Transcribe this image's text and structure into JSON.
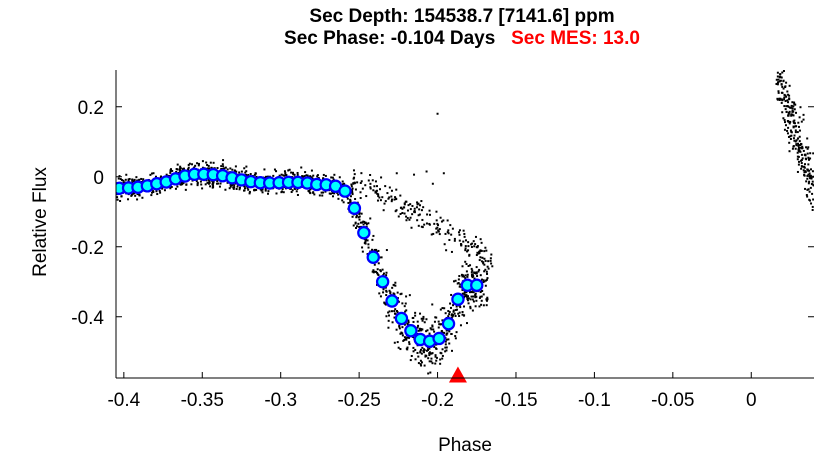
{
  "chart_data": {
    "type": "scatter",
    "title_line1": "Sec Depth: 154538.7 [7141.6] ppm",
    "title_line2_black": "Sec Phase: -0.104 Days",
    "title_line2_red": "Sec MES: 13.0",
    "xlabel": "Phase",
    "ylabel": "Relative Flux",
    "xlim": [
      -0.405,
      0.04
    ],
    "ylim": [
      -0.575,
      0.305
    ],
    "xticks": [
      "-0.4",
      "-0.35",
      "-0.3",
      "-0.25",
      "-0.2",
      "-0.15",
      "-0.1",
      "-0.05",
      "0"
    ],
    "xtick_values": [
      -0.4,
      -0.35,
      -0.3,
      -0.25,
      -0.2,
      -0.15,
      -0.1,
      -0.05,
      0
    ],
    "yticks": [
      "0.2",
      "0",
      "-0.2",
      "-0.4"
    ],
    "ytick_values": [
      0.2,
      0,
      -0.2,
      -0.4
    ],
    "grid": false,
    "colors": {
      "raw": "#000000",
      "binned_fill": "#00ffff",
      "binned_edge": "#0000ff",
      "marker": "#ff0000",
      "mes_text": "#ff0000"
    },
    "series": [
      {
        "marker": "point",
        "x_range": [
          -0.405,
          0.04
        ],
        "description_of_trend": "dense cloud following binned curve"
      },
      {
        "marker": "circle",
        "x": [
          -0.403,
          -0.397,
          -0.391,
          -0.385,
          -0.379,
          -0.373,
          -0.367,
          -0.361,
          -0.355,
          -0.349,
          -0.343,
          -0.337,
          -0.331,
          -0.325,
          -0.319,
          -0.313,
          -0.307,
          -0.301,
          -0.295,
          -0.289,
          -0.283,
          -0.277,
          -0.271,
          -0.265,
          -0.259,
          -0.253,
          -0.247,
          -0.241,
          -0.235,
          -0.229,
          -0.223,
          -0.217,
          -0.211,
          -0.205,
          -0.199,
          -0.193,
          -0.187,
          -0.181,
          -0.175
        ],
        "y": [
          -0.033,
          -0.032,
          -0.03,
          -0.026,
          -0.02,
          -0.015,
          -0.006,
          0.002,
          0.007,
          0.007,
          0.006,
          0.003,
          -0.003,
          -0.009,
          -0.014,
          -0.017,
          -0.018,
          -0.017,
          -0.016,
          -0.016,
          -0.018,
          -0.022,
          -0.023,
          -0.027,
          -0.041,
          -0.09,
          -0.16,
          -0.23,
          -0.3,
          -0.355,
          -0.405,
          -0.44,
          -0.465,
          -0.47,
          -0.462,
          -0.42,
          -0.35,
          -0.31,
          -0.31
        ]
      },
      {
        "marker": "triangle",
        "x": [
          -0.187
        ],
        "y": [
          -0.565
        ]
      }
    ]
  }
}
